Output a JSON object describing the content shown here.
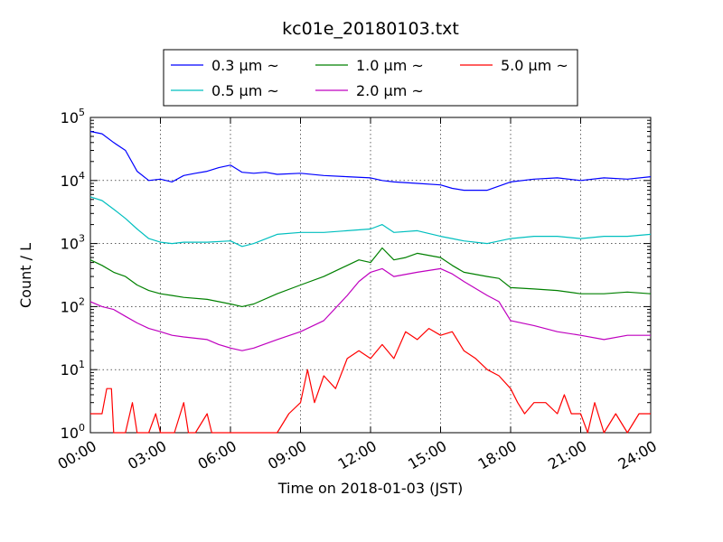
{
  "chart_data": {
    "type": "line",
    "title": "kc01e_20180103.txt",
    "xlabel": "Time on 2018-01-03 (JST)",
    "ylabel": "Count / L",
    "y_scale": "log",
    "ylim": [
      1,
      100000
    ],
    "xlim": [
      0,
      24
    ],
    "x_unit": "hour",
    "grid": true,
    "legend_position": "top-center",
    "x_ticks": [
      {
        "value": 0,
        "label": "00:00"
      },
      {
        "value": 3,
        "label": "03:00"
      },
      {
        "value": 6,
        "label": "06:00"
      },
      {
        "value": 9,
        "label": "09:00"
      },
      {
        "value": 12,
        "label": "12:00"
      },
      {
        "value": 15,
        "label": "15:00"
      },
      {
        "value": 18,
        "label": "18:00"
      },
      {
        "value": 21,
        "label": "21:00"
      },
      {
        "value": 24,
        "label": "24:00"
      }
    ],
    "y_ticks": [
      {
        "value": 1,
        "base": "10",
        "exp": "0"
      },
      {
        "value": 10,
        "base": "10",
        "exp": "1"
      },
      {
        "value": 100,
        "base": "10",
        "exp": "2"
      },
      {
        "value": 1000,
        "base": "10",
        "exp": "3"
      },
      {
        "value": 10000,
        "base": "10",
        "exp": "4"
      },
      {
        "value": 100000,
        "base": "10",
        "exp": "5"
      }
    ],
    "series": [
      {
        "name": "0.3 μm ~",
        "color": "#0000ff",
        "points": [
          [
            0,
            60000
          ],
          [
            0.5,
            55000
          ],
          [
            1,
            40000
          ],
          [
            1.5,
            30000
          ],
          [
            2,
            14000
          ],
          [
            2.5,
            10000
          ],
          [
            3,
            10500
          ],
          [
            3.5,
            9500
          ],
          [
            4,
            12000
          ],
          [
            4.5,
            13000
          ],
          [
            5,
            14000
          ],
          [
            5.5,
            16000
          ],
          [
            6,
            17500
          ],
          [
            6.5,
            13500
          ],
          [
            7,
            13000
          ],
          [
            7.5,
            13500
          ],
          [
            8,
            12500
          ],
          [
            9,
            13000
          ],
          [
            10,
            12000
          ],
          [
            11,
            11500
          ],
          [
            12,
            11000
          ],
          [
            12.5,
            10000
          ],
          [
            13,
            9500
          ],
          [
            14,
            9000
          ],
          [
            15,
            8500
          ],
          [
            15.5,
            7500
          ],
          [
            16,
            7000
          ],
          [
            17,
            7000
          ],
          [
            18,
            9500
          ],
          [
            19,
            10500
          ],
          [
            20,
            11000
          ],
          [
            21,
            10000
          ],
          [
            22,
            11000
          ],
          [
            23,
            10500
          ],
          [
            24,
            11500
          ]
        ]
      },
      {
        "name": "0.5 μm ~",
        "color": "#00bfbf",
        "points": [
          [
            0,
            5500
          ],
          [
            0.5,
            4800
          ],
          [
            1,
            3500
          ],
          [
            1.5,
            2500
          ],
          [
            2,
            1700
          ],
          [
            2.5,
            1200
          ],
          [
            3,
            1050
          ],
          [
            3.5,
            1000
          ],
          [
            4,
            1050
          ],
          [
            5,
            1050
          ],
          [
            6,
            1100
          ],
          [
            6.5,
            900
          ],
          [
            7,
            1000
          ],
          [
            8,
            1400
          ],
          [
            9,
            1500
          ],
          [
            10,
            1500
          ],
          [
            11,
            1600
          ],
          [
            12,
            1700
          ],
          [
            12.5,
            2000
          ],
          [
            13,
            1500
          ],
          [
            14,
            1600
          ],
          [
            15,
            1300
          ],
          [
            15.5,
            1200
          ],
          [
            16,
            1100
          ],
          [
            17,
            1000
          ],
          [
            18,
            1200
          ],
          [
            19,
            1300
          ],
          [
            20,
            1300
          ],
          [
            21,
            1200
          ],
          [
            22,
            1300
          ],
          [
            23,
            1300
          ],
          [
            24,
            1400
          ]
        ]
      },
      {
        "name": "1.0 μm ~",
        "color": "#008000",
        "points": [
          [
            0,
            550
          ],
          [
            0.5,
            450
          ],
          [
            1,
            350
          ],
          [
            1.5,
            300
          ],
          [
            2,
            220
          ],
          [
            2.5,
            180
          ],
          [
            3,
            160
          ],
          [
            3.5,
            150
          ],
          [
            4,
            140
          ],
          [
            5,
            130
          ],
          [
            6,
            110
          ],
          [
            6.5,
            100
          ],
          [
            7,
            110
          ],
          [
            8,
            160
          ],
          [
            9,
            220
          ],
          [
            10,
            300
          ],
          [
            11,
            450
          ],
          [
            11.5,
            550
          ],
          [
            12,
            500
          ],
          [
            12.5,
            850
          ],
          [
            13,
            550
          ],
          [
            13.5,
            600
          ],
          [
            14,
            700
          ],
          [
            15,
            600
          ],
          [
            15.5,
            450
          ],
          [
            16,
            350
          ],
          [
            17,
            300
          ],
          [
            17.5,
            280
          ],
          [
            18,
            200
          ],
          [
            19,
            190
          ],
          [
            20,
            180
          ],
          [
            21,
            160
          ],
          [
            22,
            160
          ],
          [
            23,
            170
          ],
          [
            24,
            160
          ]
        ]
      },
      {
        "name": "2.0 μm ~",
        "color": "#bf00bf",
        "points": [
          [
            0,
            120
          ],
          [
            0.5,
            100
          ],
          [
            1,
            90
          ],
          [
            1.5,
            70
          ],
          [
            2,
            55
          ],
          [
            2.5,
            45
          ],
          [
            3,
            40
          ],
          [
            3.5,
            35
          ],
          [
            4,
            33
          ],
          [
            5,
            30
          ],
          [
            5.5,
            25
          ],
          [
            6,
            22
          ],
          [
            6.5,
            20
          ],
          [
            7,
            22
          ],
          [
            8,
            30
          ],
          [
            9,
            40
          ],
          [
            10,
            60
          ],
          [
            11,
            150
          ],
          [
            11.5,
            250
          ],
          [
            12,
            350
          ],
          [
            12.5,
            400
          ],
          [
            13,
            300
          ],
          [
            14,
            350
          ],
          [
            15,
            400
          ],
          [
            15.5,
            330
          ],
          [
            16,
            250
          ],
          [
            17,
            150
          ],
          [
            17.5,
            120
          ],
          [
            18,
            60
          ],
          [
            19,
            50
          ],
          [
            20,
            40
          ],
          [
            21,
            35
          ],
          [
            22,
            30
          ],
          [
            23,
            35
          ],
          [
            24,
            35
          ]
        ]
      },
      {
        "name": "5.0 μm ~",
        "color": "#ff0000",
        "points": [
          [
            0,
            2
          ],
          [
            0.5,
            2
          ],
          [
            0.7,
            5
          ],
          [
            0.9,
            5
          ],
          [
            1,
            1
          ],
          [
            1.3,
            1
          ],
          [
            1.5,
            1
          ],
          [
            1.8,
            3
          ],
          [
            2,
            1
          ],
          [
            2.5,
            1
          ],
          [
            2.8,
            2
          ],
          [
            3,
            1
          ],
          [
            3.3,
            1
          ],
          [
            3.6,
            1
          ],
          [
            4,
            3
          ],
          [
            4.2,
            1
          ],
          [
            4.5,
            1
          ],
          [
            5,
            2
          ],
          [
            5.2,
            1
          ],
          [
            5.5,
            1
          ],
          [
            6,
            1
          ],
          [
            6.5,
            1
          ],
          [
            7,
            1
          ],
          [
            7.5,
            1
          ],
          [
            8,
            1
          ],
          [
            8.5,
            2
          ],
          [
            9,
            3
          ],
          [
            9.3,
            10
          ],
          [
            9.6,
            3
          ],
          [
            10,
            8
          ],
          [
            10.5,
            5
          ],
          [
            11,
            15
          ],
          [
            11.5,
            20
          ],
          [
            12,
            15
          ],
          [
            12.5,
            25
          ],
          [
            13,
            15
          ],
          [
            13.5,
            40
          ],
          [
            14,
            30
          ],
          [
            14.5,
            45
          ],
          [
            15,
            35
          ],
          [
            15.5,
            40
          ],
          [
            16,
            20
          ],
          [
            16.5,
            15
          ],
          [
            17,
            10
          ],
          [
            17.5,
            8
          ],
          [
            18,
            5
          ],
          [
            18.3,
            3
          ],
          [
            18.6,
            2
          ],
          [
            19,
            3
          ],
          [
            19.5,
            3
          ],
          [
            20,
            2
          ],
          [
            20.3,
            4
          ],
          [
            20.6,
            2
          ],
          [
            21,
            2
          ],
          [
            21.3,
            1
          ],
          [
            21.6,
            3
          ],
          [
            22,
            1
          ],
          [
            22.5,
            2
          ],
          [
            23,
            1
          ],
          [
            23.5,
            2
          ],
          [
            24,
            2
          ]
        ]
      }
    ]
  }
}
